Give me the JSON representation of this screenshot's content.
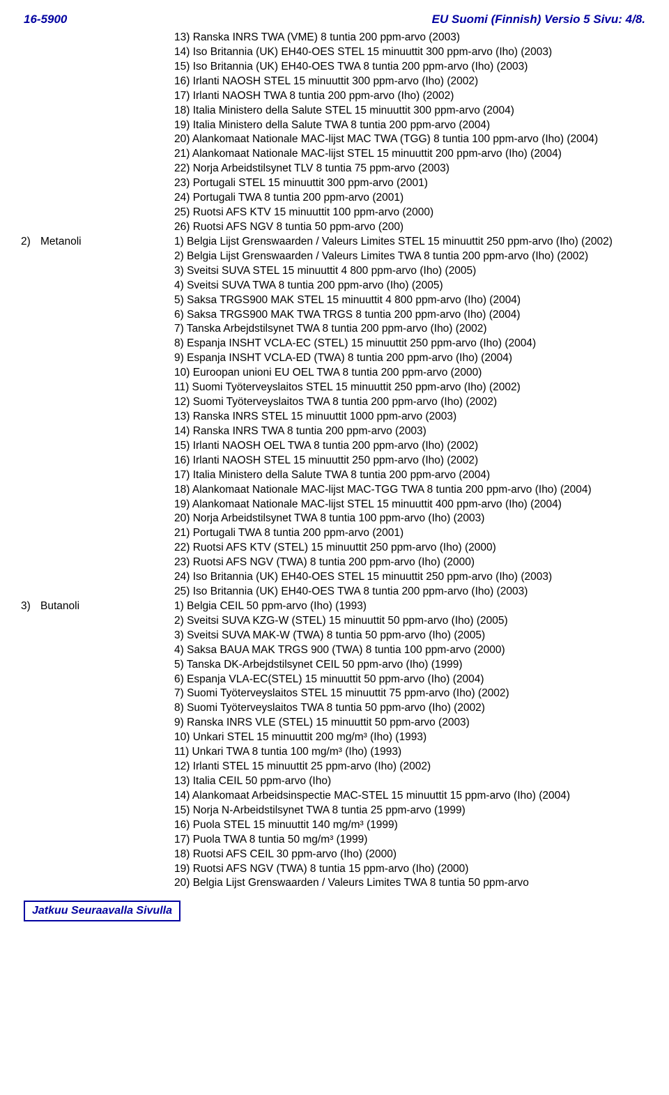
{
  "header": {
    "doc_id": "16-5900",
    "title_right": "EU Suomi (Finnish)  Versio  5  Sivu: 4/8."
  },
  "sections": [
    {
      "label": "",
      "lines": [
        "13) Ranska INRS TWA (VME) 8 tuntia 200 ppm-arvo (2003)",
        "14) Iso Britannia (UK) EH40-OES STEL 15 minuuttit 300 ppm-arvo (Iho) (2003)",
        "15) Iso Britannia (UK) EH40-OES TWA 8 tuntia 200 ppm-arvo (Iho) (2003)",
        "16) Irlanti NAOSH STEL 15 minuuttit 300 ppm-arvo (Iho) (2002)",
        "17) Irlanti NAOSH TWA 8 tuntia 200 ppm-arvo (Iho) (2002)",
        "18) Italia Ministero della Salute STEL 15 minuuttit 300 ppm-arvo (2004)",
        "19) Italia Ministero della Salute TWA 8 tuntia 200 ppm-arvo (2004)",
        "20) Alankomaat Nationale MAC-lijst MAC TWA (TGG) 8 tuntia 100 ppm-arvo (Iho) (2004)",
        "21) Alankomaat Nationale MAC-lijst STEL 15 minuuttit 200 ppm-arvo (Iho) (2004)",
        "22) Norja Arbeidstilsynet TLV 8 tuntia 75 ppm-arvo (2003)",
        "23) Portugali STEL 15 minuuttit 300 ppm-arvo (2001)",
        "24) Portugali TWA 8 tuntia 200 ppm-arvo (2001)",
        "25) Ruotsi AFS KTV 15 minuuttit 100 ppm-arvo (2000)",
        "26) Ruotsi AFS NGV 8 tuntia 50 ppm-arvo (200)"
      ]
    },
    {
      "label_idx": "2)",
      "label_name": "Metanoli",
      "lines": [
        "1) Belgia Lijst Grenswaarden / Valeurs Limites STEL 15 minuuttit 250 ppm-arvo (Iho) (2002)",
        "2) Belgia Lijst Grenswaarden / Valeurs Limites TWA 8 tuntia 200 ppm-arvo (Iho) (2002)",
        "3) Sveitsi SUVA STEL 15 minuuttit 4 800 ppm-arvo (Iho) (2005)",
        "4) Sveitsi SUVA TWA 8 tuntia 200 ppm-arvo (Iho) (2005)",
        "5) Saksa TRGS900 MAK STEL 15 minuuttit 4 800 ppm-arvo (Iho) (2004)",
        "6) Saksa TRGS900 MAK TWA TRGS 8 tuntia 200 ppm-arvo (Iho) (2004)",
        "7) Tanska Arbejdstilsynet TWA 8 tuntia 200 ppm-arvo (Iho) (2002)",
        "8) Espanja INSHT  VCLA-EC (STEL) 15 minuuttit 250 ppm-arvo (Iho) (2004)",
        "9) Espanja INSHT VCLA-ED (TWA) 8 tuntia 200 ppm-arvo (Iho) (2004)",
        "10) Euroopan unioni EU OEL TWA 8 tuntia 200 ppm-arvo (2000)",
        "11) Suomi Työterveyslaitos STEL 15 minuuttit 250 ppm-arvo (Iho) (2002)",
        "12) Suomi Työterveyslaitos TWA 8 tuntia 200 ppm-arvo (Iho) (2002)",
        "13) Ranska INRS STEL 15 minuuttit 1000 ppm-arvo (2003)",
        "14) Ranska INRS TWA 8 tuntia 200 ppm-arvo (2003)",
        "15) Irlanti NAOSH OEL TWA 8 tuntia 200 ppm-arvo (Iho) (2002)",
        "16) Irlanti NAOSH STEL 15 minuuttit 250 ppm-arvo (Iho) (2002)",
        "17) Italia Ministero della Salute TWA 8 tuntia 200 ppm-arvo (2004)",
        "18) Alankomaat Nationale MAC-lijst MAC-TGG TWA 8 tuntia 200 ppm-arvo (Iho) (2004)",
        "19) Alankomaat Nationale MAC-lijst STEL 15 minuuttit 400 ppm-arvo (Iho) (2004)",
        "20) Norja Arbeidstilsynet TWA 8 tuntia 100 ppm-arvo (Iho) (2003)",
        "21) Portugali TWA 8 tuntia 200 ppm-arvo (2001)",
        "22) Ruotsi AFS KTV (STEL) 15 minuuttit 250 ppm-arvo (Iho) (2000)",
        "23) Ruotsi AFS NGV (TWA) 8 tuntia 200 ppm-arvo (Iho) (2000)",
        "24) Iso Britannia (UK) EH40-OES STEL 15 minuuttit 250 ppm-arvo (Iho) (2003)",
        "25) Iso Britannia (UK) EH40-OES TWA 8 tuntia 200 ppm-arvo (Iho) (2003)"
      ]
    },
    {
      "label_idx": "3)",
      "label_name": "Butanoli",
      "lines": [
        "1) Belgia CEIL 50 ppm-arvo (Iho) (1993)",
        "2) Sveitsi SUVA KZG-W (STEL) 15 minuuttit 50 ppm-arvo (Iho) (2005)",
        "3) Sveitsi SUVA MAK-W (TWA) 8 tuntia 50 ppm-arvo (Iho) (2005)",
        "4) Saksa BAUA MAK TRGS 900 (TWA) 8 tuntia 100 ppm-arvo (2000)",
        "5) Tanska DK-Arbejdstilsynet CEIL 50 ppm-arvo (Iho) (1999)",
        "6) Espanja VLA-EC(STEL) 15 minuuttit 50 ppm-arvo (Iho) (2004)",
        "7) Suomi Työterveyslaitos STEL 15 minuuttit 75 ppm-arvo (Iho) (2002)",
        "8) Suomi Työterveyslaitos TWA 8 tuntia 50 ppm-arvo (Iho) (2002)",
        "9) Ranska INRS VLE (STEL) 15 minuuttit 50 ppm-arvo (2003)",
        "10) Unkari STEL 15 minuuttit 200 mg/m³ (Iho) (1993)",
        "11) Unkari TWA 8 tuntia 100 mg/m³ (Iho) (1993)",
        "12) Irlanti STEL 15 minuuttit 25 ppm-arvo (Iho) (2002)",
        "13) Italia CEIL 50 ppm-arvo (Iho)",
        "14) Alankomaat Arbeidsinspectie MAC-STEL 15 minuuttit 15 ppm-arvo (Iho) (2004)",
        "15) Norja N-Arbeidstilsynet TWA 8 tuntia 25 ppm-arvo (1999)",
        "16) Puola STEL 15 minuuttit 140 mg/m³ (1999)",
        "17) Puola TWA 8 tuntia 50 mg/m³ (1999)",
        "18) Ruotsi AFS CEIL 30 ppm-arvo (Iho) (2000)",
        "19) Ruotsi AFS NGV (TWA) 8 tuntia 15 ppm-arvo (Iho) (2000)",
        "20) Belgia Lijst Grenswaarden / Valeurs Limites TWA 8 tuntia 50 ppm-arvo"
      ]
    }
  ],
  "footer": "Jatkuu Seuraavalla Sivulla"
}
